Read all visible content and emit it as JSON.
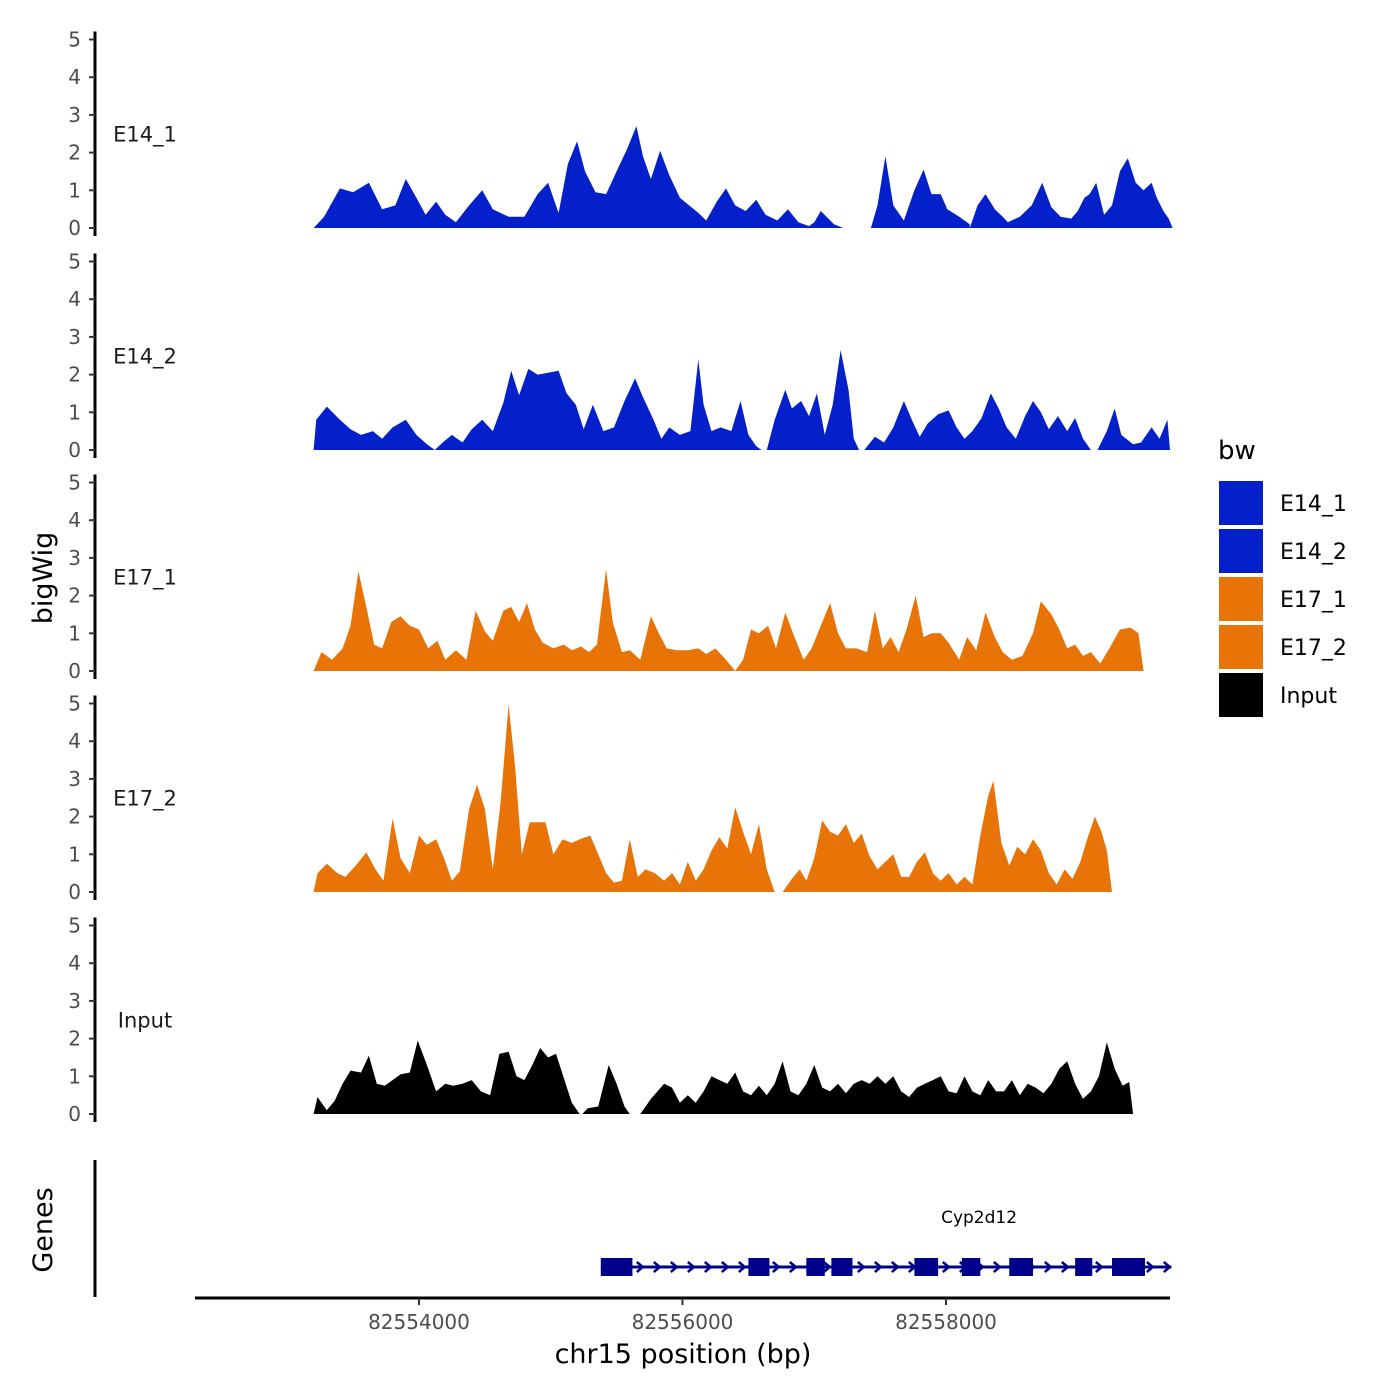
{
  "chart_data": {
    "type": "area",
    "xlabel": "chr15 position (bp)",
    "ylabel": "bigWig",
    "xlim": [
      82552300,
      82559700
    ],
    "x_ticks": [
      82554000,
      82556000,
      82558000
    ],
    "x_tick_labels": [
      "82554000",
      "82556000",
      "82558000"
    ],
    "ylim": [
      0,
      5
    ],
    "y_ticks": [
      0,
      1,
      2,
      3,
      4,
      5
    ],
    "y_tick_labels": [
      "0",
      "1",
      "2",
      "3",
      "4",
      "5"
    ],
    "legend": {
      "title": "bw",
      "position": "right"
    },
    "tracks": [
      {
        "name": "E14_1",
        "color": "#0320cb",
        "x_start": 82553200,
        "x_end": 82559700,
        "points": [
          [
            82553200,
            0
          ],
          [
            82553300,
            0.3
          ],
          [
            82553400,
            1.05
          ],
          [
            82553500,
            0.95
          ],
          [
            82553600,
            1.15
          ],
          [
            82553700,
            0.5
          ],
          [
            82553800,
            0.6
          ],
          [
            82553850,
            0.8
          ],
          [
            82553900,
            1.3
          ],
          [
            82554000,
            0.6
          ],
          [
            82554100,
            0.7
          ],
          [
            82554150,
            0.4
          ],
          [
            82554250,
            0.2
          ],
          [
            82554300,
            0.25
          ],
          [
            82554450,
            1.0
          ],
          [
            82554550,
            0.55
          ],
          [
            82554700,
            0.25
          ],
          [
            82554850,
            0.3
          ],
          [
            82554950,
            1.2
          ],
          [
            82555050,
            0.35
          ],
          [
            82555150,
            2.1
          ],
          [
            82555200,
            2.3
          ],
          [
            82555300,
            1.2
          ],
          [
            82555400,
            0.9
          ],
          [
            82555550,
            1.9
          ],
          [
            82555650,
            2.7
          ],
          [
            82555700,
            1.9
          ],
          [
            82555750,
            1.2
          ],
          [
            82555850,
            2.05
          ],
          [
            82555950,
            1.3
          ],
          [
            82556050,
            0.7
          ],
          [
            82556150,
            0.5
          ],
          [
            82556250,
            0.15
          ],
          [
            82556350,
            0.55
          ],
          [
            82556450,
            1.0
          ],
          [
            82556500,
            0.6
          ],
          [
            82556600,
            0.55
          ],
          [
            82556650,
            0.3
          ],
          [
            82556750,
            0.2
          ],
          [
            82556850,
            0.45
          ],
          [
            82556950,
            0.2
          ],
          [
            82557150,
            0.05
          ],
          [
            82557200,
            0
          ]
        ],
        "gap": [
          [
            82557200,
            82557400
          ]
        ],
        "points2": [
          [
            82557400,
            0
          ],
          [
            82557500,
            1.9
          ],
          [
            82557600,
            0.5
          ],
          [
            82557700,
            0.25
          ],
          [
            82557800,
            1.5
          ],
          [
            82557900,
            1.05
          ],
          [
            82558000,
            0.9
          ],
          [
            82558100,
            0.8
          ],
          [
            82558200,
            0
          ],
          [
            82558300,
            0.8
          ],
          [
            82558400,
            0.4
          ],
          [
            82558500,
            0.2
          ],
          [
            82558600,
            0.3
          ],
          [
            82558700,
            0.55
          ],
          [
            82558800,
            1.2
          ],
          [
            82558900,
            0.5
          ],
          [
            82559000,
            0.25
          ],
          [
            82559050,
            0.3
          ],
          [
            82559100,
            0.6
          ],
          [
            82559150,
            0.35
          ],
          [
            82559250,
            0.9
          ],
          [
            82559300,
            0.5
          ],
          [
            82559400,
            1.3
          ],
          [
            82559500,
            1.5
          ],
          [
            82559600,
            1.8
          ],
          [
            82559700,
            1.3
          ]
        ]
      },
      {
        "name": "E14_2",
        "color": "#0320cb"
      },
      {
        "name": "E17_1",
        "color": "#e87408"
      },
      {
        "name": "E17_2",
        "color": "#e87408"
      },
      {
        "name": "Input",
        "color": "#000000"
      }
    ],
    "genes": [
      {
        "name": "Cyp2d12",
        "strand": "+",
        "start": 82555380,
        "end": 82559710,
        "exons": [
          [
            82555380,
            82555620
          ],
          [
            82556500,
            82556660
          ],
          [
            82556940,
            82557080
          ],
          [
            82557130,
            82557290
          ],
          [
            82557760,
            82557940
          ],
          [
            82558120,
            82558260
          ],
          [
            82558480,
            82558660
          ],
          [
            82558980,
            82559110
          ],
          [
            82559260,
            82559510
          ]
        ],
        "color": "#00008b"
      }
    ],
    "legend_entries": [
      {
        "label": "E14_1",
        "color": "#0320cb"
      },
      {
        "label": "E14_2",
        "color": "#0320cb"
      },
      {
        "label": "E17_1",
        "color": "#e87408"
      },
      {
        "label": "E17_2",
        "color": "#e87408"
      },
      {
        "label": "Input",
        "color": "#000000"
      }
    ],
    "genes_title": "Genes"
  }
}
